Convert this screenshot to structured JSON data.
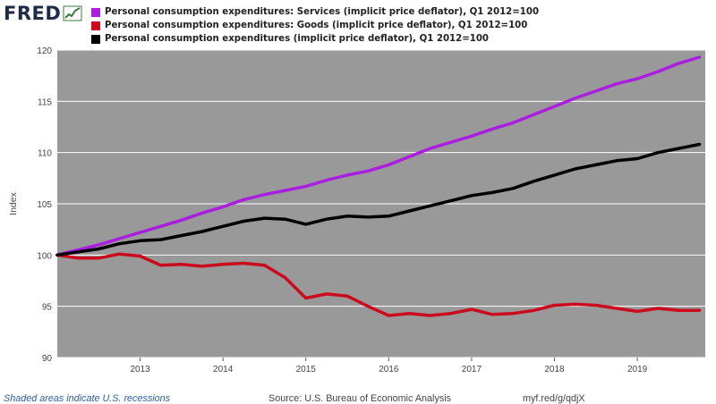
{
  "branding": {
    "logo_text": "FRED",
    "logo_icon": "chart-line-icon"
  },
  "chart_data": {
    "type": "line",
    "xlabel": "",
    "ylabel": "Index",
    "ylim": [
      90,
      120
    ],
    "xlim": [
      2012.0,
      2019.82
    ],
    "yticks": [
      "90",
      "95",
      "100",
      "105",
      "110",
      "115",
      "120"
    ],
    "xticks": [
      "2013",
      "2014",
      "2015",
      "2016",
      "2017",
      "2018",
      "2019"
    ],
    "grid": true,
    "legend_position": "top-left",
    "background": "#999999",
    "series": [
      {
        "name": "Personal consumption expenditures: Services (implicit price deflator), Q1 2012=100",
        "color": "#aa1ee0",
        "x": [
          2012.0,
          2012.25,
          2012.5,
          2012.75,
          2013.0,
          2013.25,
          2013.5,
          2013.75,
          2014.0,
          2014.25,
          2014.5,
          2014.75,
          2015.0,
          2015.25,
          2015.5,
          2015.75,
          2016.0,
          2016.25,
          2016.5,
          2016.75,
          2017.0,
          2017.25,
          2017.5,
          2017.75,
          2018.0,
          2018.25,
          2018.5,
          2018.75,
          2019.0,
          2019.25,
          2019.5,
          2019.75
        ],
        "y": [
          100.0,
          100.5,
          101.0,
          101.6,
          102.2,
          102.8,
          103.4,
          104.1,
          104.7,
          105.4,
          105.9,
          106.3,
          106.7,
          107.3,
          107.8,
          108.2,
          108.8,
          109.6,
          110.4,
          111.0,
          111.6,
          112.3,
          112.9,
          113.7,
          114.5,
          115.3,
          116.0,
          116.7,
          117.2,
          117.9,
          118.7,
          119.3
        ]
      },
      {
        "name": "Personal consumption expenditures: Goods (implicit price deflator), Q1 2012=100",
        "color": "#cc0a1e",
        "x": [
          2012.0,
          2012.25,
          2012.5,
          2012.75,
          2013.0,
          2013.25,
          2013.5,
          2013.75,
          2014.0,
          2014.25,
          2014.5,
          2014.75,
          2015.0,
          2015.25,
          2015.5,
          2015.75,
          2016.0,
          2016.25,
          2016.5,
          2016.75,
          2017.0,
          2017.25,
          2017.5,
          2017.75,
          2018.0,
          2018.25,
          2018.5,
          2018.75,
          2019.0,
          2019.25,
          2019.5,
          2019.75
        ],
        "y": [
          100.0,
          99.7,
          99.7,
          100.1,
          99.9,
          99.0,
          99.1,
          98.9,
          99.1,
          99.2,
          99.0,
          97.8,
          95.8,
          96.2,
          96.0,
          95.0,
          94.1,
          94.3,
          94.1,
          94.3,
          94.7,
          94.2,
          94.3,
          94.6,
          95.1,
          95.2,
          95.1,
          94.8,
          94.5,
          94.8,
          94.6,
          94.6
        ]
      },
      {
        "name": "Personal consumption expenditures (implicit price deflator), Q1 2012=100",
        "color": "#000000",
        "x": [
          2012.0,
          2012.25,
          2012.5,
          2012.75,
          2013.0,
          2013.25,
          2013.5,
          2013.75,
          2014.0,
          2014.25,
          2014.5,
          2014.75,
          2015.0,
          2015.25,
          2015.5,
          2015.75,
          2016.0,
          2016.25,
          2016.5,
          2016.75,
          2017.0,
          2017.25,
          2017.5,
          2017.75,
          2018.0,
          2018.25,
          2018.5,
          2018.75,
          2019.0,
          2019.25,
          2019.5,
          2019.75
        ],
        "y": [
          100.0,
          100.3,
          100.6,
          101.1,
          101.4,
          101.5,
          101.9,
          102.3,
          102.8,
          103.3,
          103.6,
          103.5,
          103.0,
          103.5,
          103.8,
          103.7,
          103.8,
          104.3,
          104.8,
          105.3,
          105.8,
          106.1,
          106.5,
          107.2,
          107.8,
          108.4,
          108.8,
          109.2,
          109.4,
          110.0,
          110.4,
          110.8
        ]
      }
    ]
  },
  "footer": {
    "note": "Shaded areas indicate U.S. recessions",
    "source": "Source: U.S. Bureau of Economic Analysis",
    "link": "myf.red/g/qdjX"
  }
}
